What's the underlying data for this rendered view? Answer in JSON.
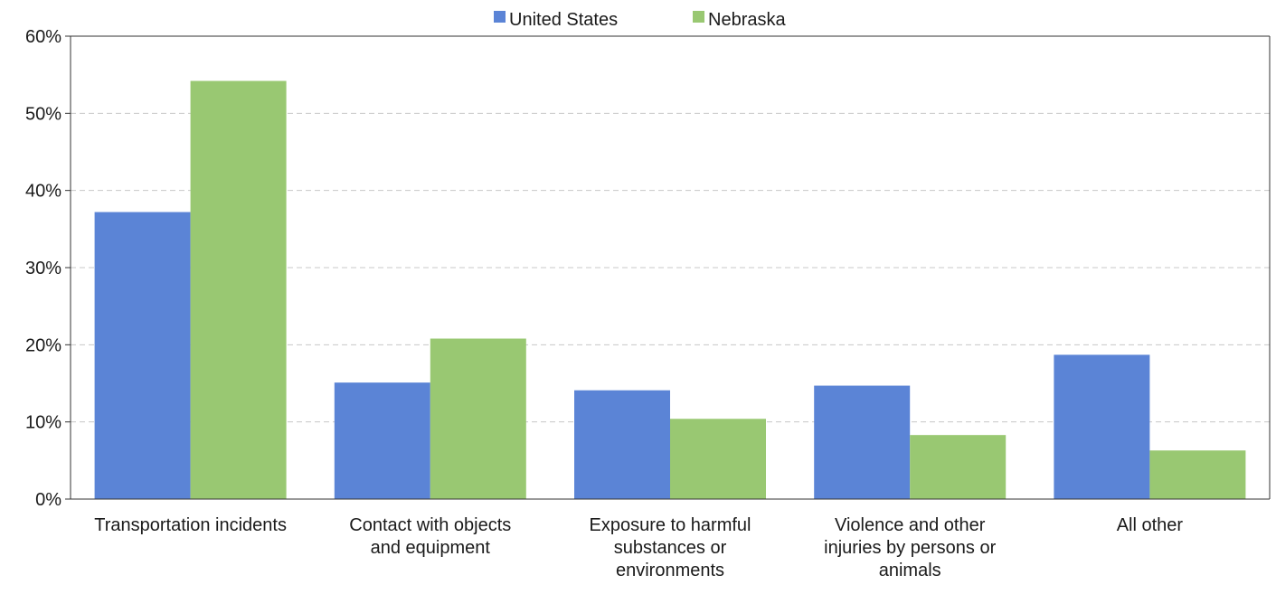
{
  "chart_data": {
    "type": "bar",
    "categories": [
      [
        "Transportation incidents"
      ],
      [
        "Contact with objects",
        "and equipment"
      ],
      [
        "Exposure to harmful",
        "substances or",
        "environments"
      ],
      [
        "Violence and other",
        "injuries by persons or",
        "animals"
      ],
      [
        "All other"
      ]
    ],
    "series": [
      {
        "name": "United States",
        "color": "#5b84d6",
        "values": [
          37.2,
          15.1,
          14.1,
          14.7,
          18.7
        ]
      },
      {
        "name": "Nebraska",
        "color": "#99c872",
        "values": [
          54.2,
          20.8,
          10.4,
          8.3,
          6.3
        ]
      }
    ],
    "yticks": [
      "0%",
      "10%",
      "20%",
      "30%",
      "40%",
      "50%",
      "60%"
    ],
    "ylim": [
      0,
      60
    ],
    "y_unit": "%",
    "grid": true,
    "legend_position": "top-center",
    "title": "",
    "xlabel": "",
    "ylabel": ""
  }
}
